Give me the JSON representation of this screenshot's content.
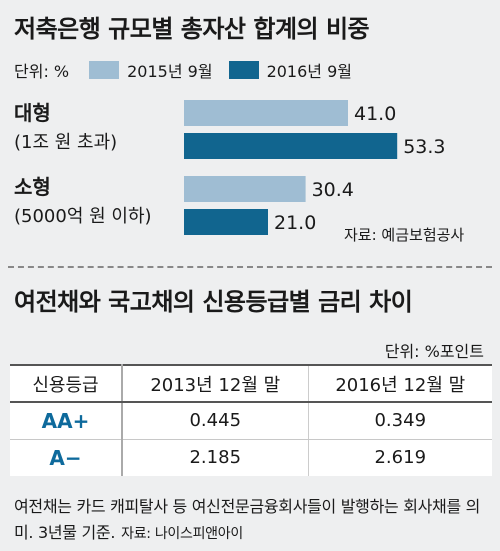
{
  "title1": "저축은행 규모별 총자산 합계의 비중",
  "legend": {
    "unit": "단위: %",
    "items": [
      {
        "label": "2015년 9월",
        "color": "#9fbdd3"
      },
      {
        "label": "2016년 9월",
        "color": "#11658f"
      }
    ]
  },
  "chart_data": {
    "type": "bar",
    "orientation": "horizontal",
    "categories": [
      "대형 (1조 원 초과)",
      "소형 (5000억 원 이하)"
    ],
    "series": [
      {
        "name": "2015년 9월",
        "values": [
          41.0,
          30.4
        ]
      },
      {
        "name": "2016년 9월",
        "values": [
          53.3,
          21.0
        ]
      }
    ]
  },
  "category_labels": [
    {
      "main": "대형",
      "sub": "(1조 원 초과)"
    },
    {
      "main": "소형",
      "sub": "(5000억 원 이하)"
    }
  ],
  "value_labels": [
    "41.0",
    "53.3",
    "30.4",
    "21.0"
  ],
  "source1": "자료: 예금보험공사",
  "title2": "여전채와 국고채의 신용등급별 금리 차이",
  "unit2": "단위: %포인트",
  "table": {
    "headers": [
      "신용등급",
      "2013년 12월 말",
      "2016년 12월 말"
    ],
    "rows": [
      {
        "grade": "AA+",
        "v2013": "0.445",
        "v2016": "0.349"
      },
      {
        "grade": "A−",
        "v2013": "2.185",
        "v2016": "2.619"
      }
    ]
  },
  "note": "여전채는 카드 캐피탈사 등 여신전문금융회사들이 발행하는 회사채를 의미. 3년물 기준.",
  "source2": "자료: 나이스피앤아이"
}
